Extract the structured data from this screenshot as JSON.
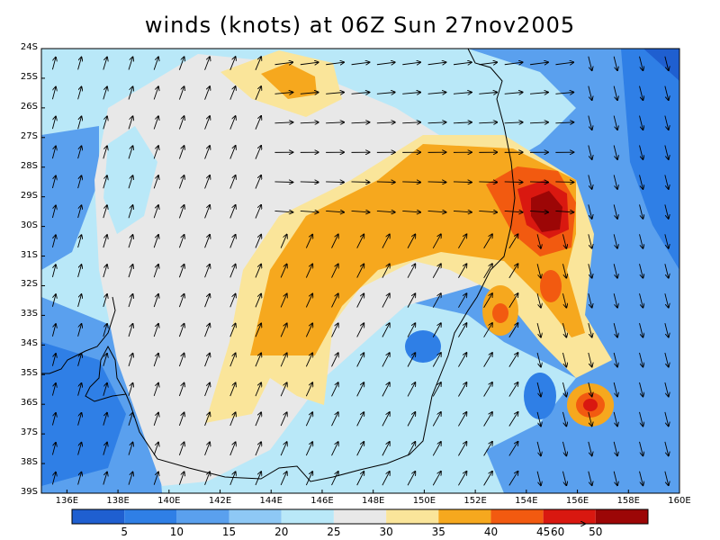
{
  "title": "winds (knots) at 06Z Sun 27nov2005",
  "colors": {
    "c0": "#1f5fd0",
    "c1": "#2f7fe6",
    "c2": "#5aa0ee",
    "c3": "#8ec8f5",
    "c4": "#b9e8f8",
    "c5": "#e8e8e8",
    "c6": "#fae59a",
    "c7": "#f6a81e",
    "c8": "#f25a10",
    "c9": "#d91810",
    "c10": "#9c0606",
    "coast": "#000000",
    "arrow": "#000000"
  },
  "lat_labels": [
    "24S",
    "25S",
    "26S",
    "27S",
    "28S",
    "29S",
    "30S",
    "31S",
    "32S",
    "33S",
    "34S",
    "35S",
    "36S",
    "37S",
    "38S",
    "39S"
  ],
  "lon_labels": [
    "136E",
    "138E",
    "140E",
    "142E",
    "144E",
    "146E",
    "148E",
    "150E",
    "152E",
    "154E",
    "156E",
    "158E",
    "160E"
  ],
  "colorbar": {
    "labels": [
      "5",
      "10",
      "15",
      "20",
      "25",
      "30",
      "35",
      "40",
      "45",
      "50"
    ]
  },
  "reference_vector": {
    "label": "60"
  }
}
